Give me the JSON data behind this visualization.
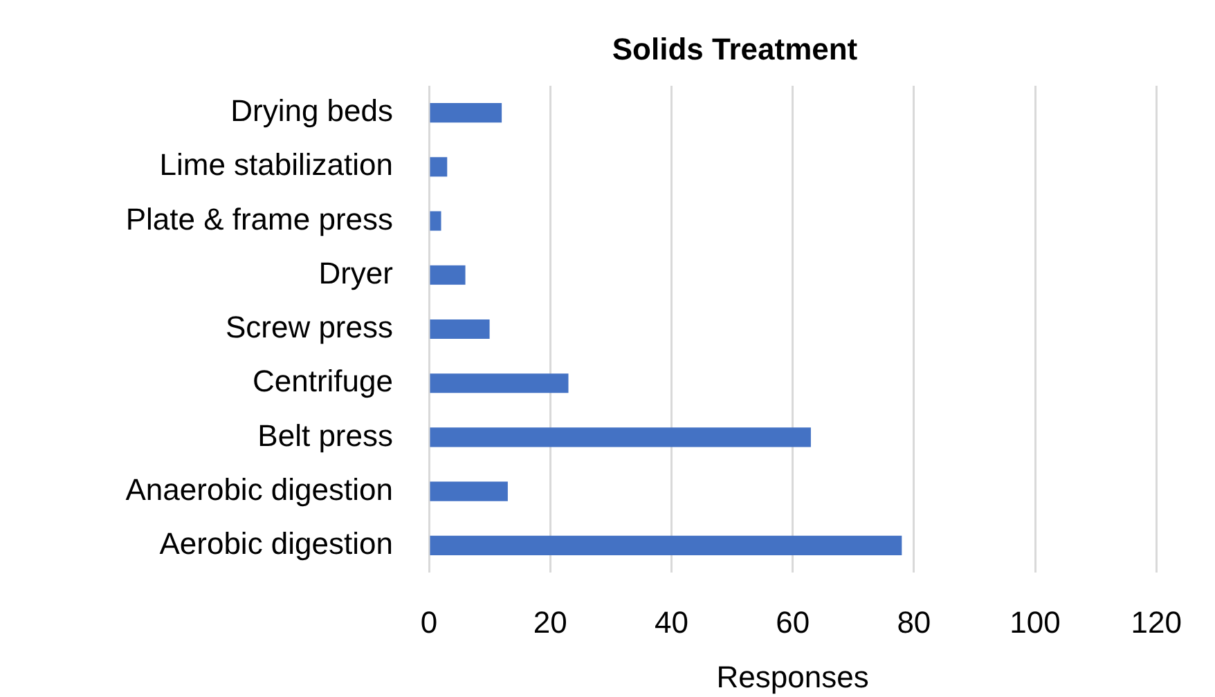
{
  "chart_data": {
    "type": "bar",
    "orientation": "horizontal",
    "title": "Solids Treatment",
    "xlabel": "Responses",
    "categories": [
      "Drying beds",
      "Lime stabilization",
      "Plate & frame press",
      "Dryer",
      "Screw press",
      "Centrifuge",
      "Belt press",
      "Anaerobic digestion",
      "Aerobic digestion"
    ],
    "values": [
      12,
      3,
      2,
      6,
      10,
      23,
      63,
      13,
      78
    ],
    "color": "#4472c4",
    "xlim": [
      0,
      120
    ],
    "xticks": [
      0,
      20,
      40,
      60,
      80,
      100,
      120
    ],
    "grid": "x",
    "legend": false
  }
}
